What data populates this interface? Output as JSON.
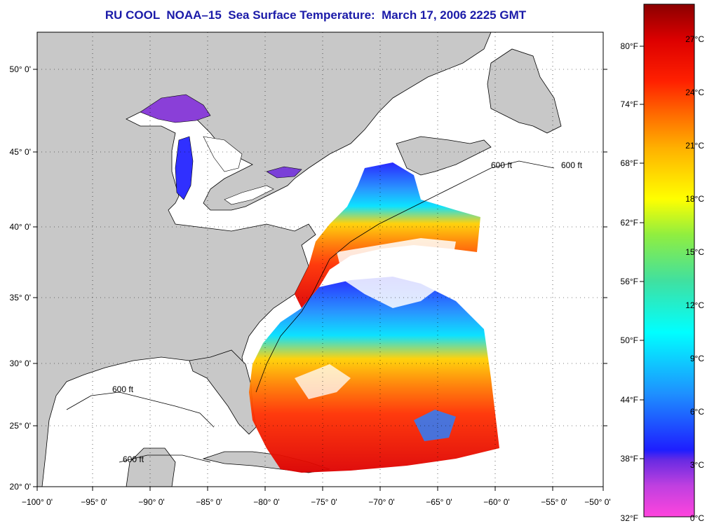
{
  "title": "RU COOL  NOAA–15  Sea Surface Temperature:  March 17, 2006 2225 GMT",
  "map": {
    "lon_range": [
      -100,
      -50
    ],
    "lat_range": [
      20,
      52.5
    ],
    "lon_ticks": [
      "−100° 0'",
      "−95° 0'",
      "−90° 0'",
      "−85° 0'",
      "−80° 0'",
      "−75° 0'",
      "−70° 0'",
      "−65° 0'",
      "−60° 0'",
      "−55° 0'",
      "−50° 0'"
    ],
    "lat_ticks": [
      "20° 0'",
      "25° 0'",
      "30° 0'",
      "35° 0'",
      "40° 0'",
      "45° 0'",
      "50° 0'"
    ],
    "grid": "dotted",
    "land_color": "#c8c8c8",
    "contour_label": "600 ft"
  },
  "colorbar": {
    "fahrenheit_labels": [
      "80°F",
      "74°F",
      "68°F",
      "62°F",
      "56°F",
      "50°F",
      "44°F",
      "38°F",
      "32°F"
    ],
    "celsius_labels": [
      "27°C",
      "24°C",
      "21°C",
      "18°C",
      "15°C",
      "12°C",
      "9°C",
      "6°C",
      "3°C",
      "0°C"
    ],
    "colors": [
      "#ff44dd",
      "#8a2be2",
      "#1e1eff",
      "#00ffff",
      "#32cd32",
      "#ffff00",
      "#ff8c00",
      "#ff2200",
      "#8b0000"
    ]
  }
}
